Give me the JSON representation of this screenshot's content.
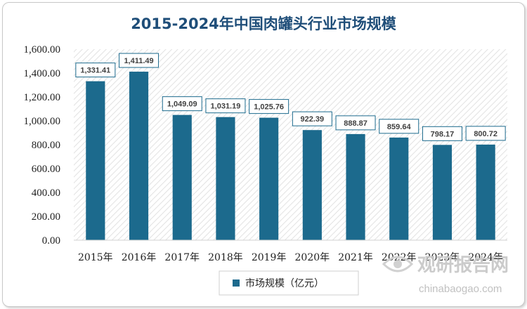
{
  "chart_data": {
    "type": "bar",
    "title": "2015-2024年中国肉罐头行业市场规模",
    "categories": [
      "2015年",
      "2016年",
      "2017年",
      "2018年",
      "2019年",
      "2020年",
      "2021年",
      "2022年",
      "2023年",
      "2024年"
    ],
    "series": [
      {
        "name": "市场规模（亿元）",
        "values": [
          1331.41,
          1411.49,
          1049.09,
          1031.19,
          1025.76,
          922.39,
          888.87,
          859.64,
          798.17,
          800.72
        ]
      }
    ],
    "data_labels": [
      "1,331.41",
      "1,411.49",
      "1,049.09",
      "1,031.19",
      "1,025.76",
      "922.39",
      "888.87",
      "859.64",
      "798.17",
      "800.72"
    ],
    "y_ticks": [
      "0.00",
      "200.00",
      "400.00",
      "600.00",
      "800.00",
      "1,000.00",
      "1,200.00",
      "1,400.00",
      "1,600.00"
    ],
    "ylim": [
      0,
      1600
    ],
    "grid": false,
    "legend_position": "bottom",
    "colors": {
      "bar": "#1c6a8d",
      "title": "#1f4e79",
      "plot_hatch": "#e4e4e4"
    }
  },
  "watermark": {
    "brand": "观研报告网",
    "url": "chinabaogao.com",
    "icon": "eye-logo-icon"
  }
}
